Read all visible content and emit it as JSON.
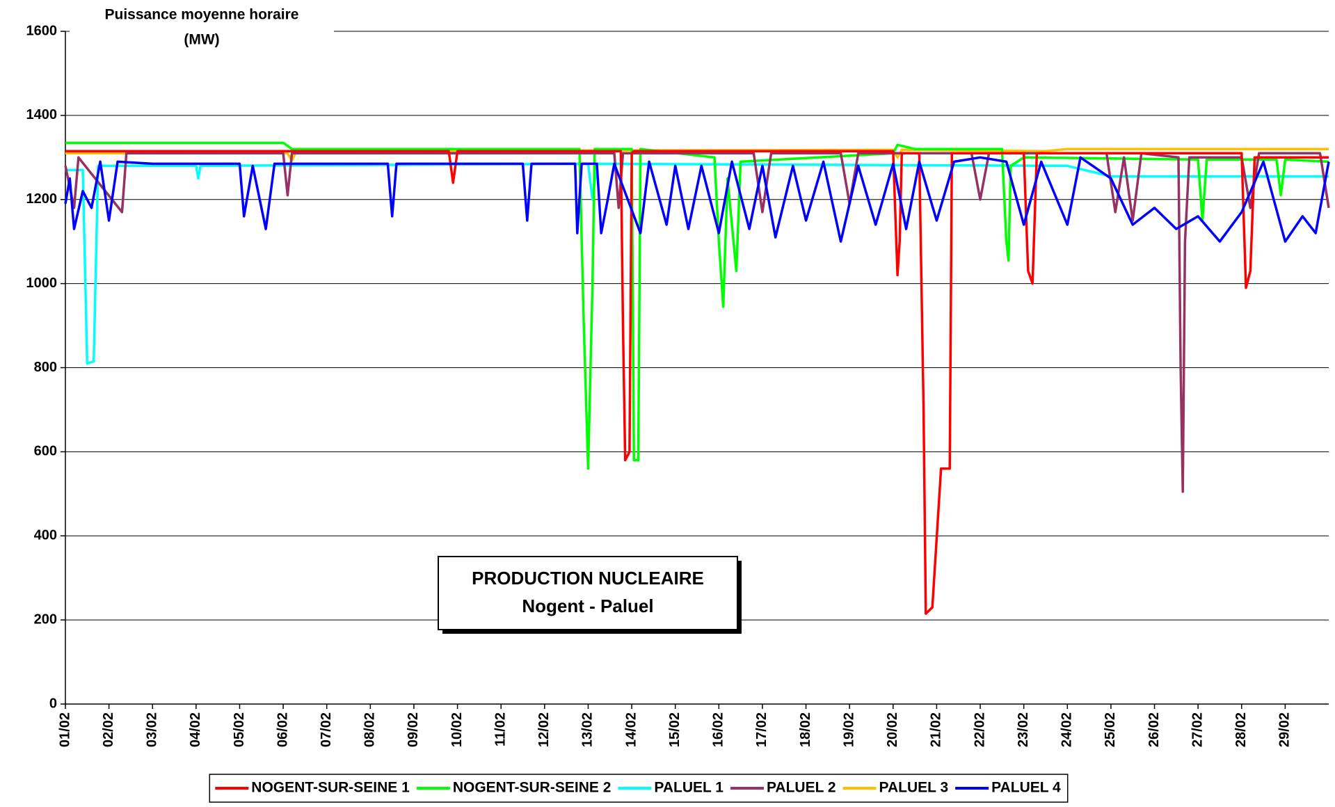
{
  "chart_data": {
    "type": "line",
    "title": "PRODUCTION NUCLEAIRE",
    "subtitle": "Nogent - Paluel",
    "y_label": [
      "Puissance moyenne horaire",
      "(MW)"
    ],
    "xlim": [
      0,
      29
    ],
    "xticks": [
      {
        "value": 0,
        "label": "01/02"
      },
      {
        "value": 1,
        "label": "02/02"
      },
      {
        "value": 2,
        "label": "03/02"
      },
      {
        "value": 3,
        "label": "04/02"
      },
      {
        "value": 4,
        "label": "05/02"
      },
      {
        "value": 5,
        "label": "06/02"
      },
      {
        "value": 6,
        "label": "07/02"
      },
      {
        "value": 7,
        "label": "08/02"
      },
      {
        "value": 8,
        "label": "09/02"
      },
      {
        "value": 9,
        "label": "10/02"
      },
      {
        "value": 10,
        "label": "11/02"
      },
      {
        "value": 11,
        "label": "12/02"
      },
      {
        "value": 12,
        "label": "13/02"
      },
      {
        "value": 13,
        "label": "14/02"
      },
      {
        "value": 14,
        "label": "15/02"
      },
      {
        "value": 15,
        "label": "16/02"
      },
      {
        "value": 16,
        "label": "17/02"
      },
      {
        "value": 17,
        "label": "18/02"
      },
      {
        "value": 18,
        "label": "19/02"
      },
      {
        "value": 19,
        "label": "20/02"
      },
      {
        "value": 20,
        "label": "21/02"
      },
      {
        "value": 21,
        "label": "22/02"
      },
      {
        "value": 22,
        "label": "23/02"
      },
      {
        "value": 23,
        "label": "24/02"
      },
      {
        "value": 24,
        "label": "25/02"
      },
      {
        "value": 25,
        "label": "26/02"
      },
      {
        "value": 26,
        "label": "27/02"
      },
      {
        "value": 27,
        "label": "28/02"
      },
      {
        "value": 28,
        "label": "29/02"
      }
    ],
    "ylim": [
      0,
      1600
    ],
    "yticks": [
      0,
      200,
      400,
      600,
      800,
      1000,
      1200,
      1400,
      1600
    ],
    "grid": true,
    "legend": "bottom",
    "series": [
      {
        "name": "PALUEL 3",
        "color": "#ffc000",
        "x": [
          0,
          5.1,
          5.2,
          5.3,
          19.0,
          19.1,
          19.2,
          22.5,
          23.0,
          29
        ],
        "values": [
          1310,
          1310,
          1292,
          1315,
          1318,
          1300,
          1318,
          1315,
          1320,
          1320
        ]
      },
      {
        "name": "PALUEL 1",
        "color": "#00ffff",
        "x": [
          0,
          0.4,
          0.5,
          0.65,
          0.75,
          3.0,
          3.05,
          3.1,
          12.0,
          12.1,
          12.2,
          23.0,
          24.0,
          29
        ],
        "values": [
          1270,
          1270,
          810,
          815,
          1280,
          1280,
          1250,
          1280,
          1285,
          1200,
          1285,
          1280,
          1255,
          1255
        ]
      },
      {
        "name": "NOGENT-SUR-SEINE 2",
        "color": "#00ff00",
        "x": [
          0,
          5.0,
          5.2,
          11.8,
          11.9,
          12.0,
          12.1,
          12.15,
          13.0,
          13.05,
          13.15,
          13.2,
          14.9,
          15.0,
          15.1,
          15.2,
          15.4,
          15.5,
          19.0,
          19.1,
          19.5,
          21.5,
          21.6,
          21.65,
          21.7,
          22.0,
          26.0,
          26.1,
          26.2,
          27.8,
          27.9,
          28.0,
          29
        ],
        "values": [
          1335,
          1335,
          1320,
          1320,
          900,
          560,
          1000,
          1320,
          1320,
          580,
          580,
          1320,
          1300,
          1100,
          945,
          1250,
          1030,
          1290,
          1310,
          1330,
          1320,
          1320,
          1100,
          1055,
          1280,
          1300,
          1295,
          1150,
          1295,
          1295,
          1210,
          1295,
          1290
        ]
      },
      {
        "name": "PALUEL 2",
        "color": "#953163",
        "x": [
          0,
          0.2,
          0.3,
          1.3,
          1.4,
          5.0,
          5.1,
          5.2,
          12.6,
          12.7,
          12.8,
          15.8,
          16.0,
          16.2,
          17.8,
          18.0,
          18.2,
          20.8,
          21.0,
          21.2,
          23.9,
          24.1,
          24.3,
          24.5,
          24.7,
          25.55,
          25.6,
          25.65,
          25.7,
          25.8,
          27.0,
          27.2,
          27.4,
          28.8,
          29
        ],
        "values": [
          1280,
          1180,
          1300,
          1170,
          1310,
          1310,
          1210,
          1310,
          1310,
          1180,
          1310,
          1310,
          1170,
          1310,
          1310,
          1190,
          1310,
          1310,
          1200,
          1310,
          1310,
          1170,
          1300,
          1150,
          1310,
          1300,
          800,
          505,
          1100,
          1300,
          1300,
          1180,
          1310,
          1310,
          1180
        ]
      },
      {
        "name": "NOGENT-SUR-SEINE 1",
        "color": "#ff0000",
        "x": [
          0,
          8.8,
          8.9,
          9.0,
          9.05,
          12.75,
          12.8,
          12.85,
          12.95,
          13.0,
          13.05,
          19.0,
          19.1,
          19.15,
          19.2,
          19.6,
          19.7,
          19.75,
          19.9,
          20.1,
          20.3,
          20.35,
          20.4,
          22.0,
          22.1,
          22.2,
          22.3,
          27.0,
          27.1,
          27.2,
          27.3,
          29
        ],
        "values": [
          1315,
          1315,
          1240,
          1315,
          1315,
          1315,
          900,
          580,
          600,
          1310,
          1315,
          1315,
          1020,
          1100,
          1310,
          1310,
          700,
          215,
          230,
          560,
          560,
          1310,
          1310,
          1310,
          1030,
          1000,
          1310,
          1310,
          990,
          1030,
          1300,
          1300
        ]
      },
      {
        "name": "PALUEL 4",
        "color": "#0000ff",
        "x": [
          0,
          0.1,
          0.2,
          0.4,
          0.6,
          0.8,
          1.0,
          1.2,
          2.0,
          4.0,
          4.1,
          4.3,
          4.6,
          4.8,
          7.4,
          7.5,
          7.6,
          10.5,
          10.6,
          10.7,
          11.7,
          11.75,
          11.85,
          12.2,
          12.3,
          12.45,
          12.6,
          13.2,
          13.4,
          13.8,
          14.0,
          14.3,
          14.6,
          15.0,
          15.3,
          15.7,
          16.0,
          16.3,
          16.7,
          17.0,
          17.4,
          17.8,
          18.2,
          18.6,
          19.0,
          19.3,
          19.6,
          20.0,
          20.4,
          21.0,
          21.6,
          22.0,
          22.4,
          22.6,
          23.0,
          23.3,
          24.0,
          24.5,
          25.0,
          25.5,
          26.0,
          26.5,
          27.0,
          27.5,
          28.0,
          28.4,
          28.7,
          29
        ],
        "values": [
          1190,
          1250,
          1130,
          1220,
          1180,
          1290,
          1150,
          1290,
          1285,
          1285,
          1160,
          1280,
          1130,
          1285,
          1285,
          1160,
          1285,
          1285,
          1150,
          1285,
          1285,
          1120,
          1285,
          1285,
          1120,
          1200,
          1285,
          1120,
          1290,
          1140,
          1280,
          1130,
          1280,
          1120,
          1290,
          1130,
          1280,
          1110,
          1280,
          1150,
          1290,
          1100,
          1280,
          1140,
          1285,
          1130,
          1290,
          1150,
          1290,
          1300,
          1290,
          1140,
          1290,
          1240,
          1140,
          1300,
          1250,
          1140,
          1180,
          1130,
          1160,
          1100,
          1170,
          1290,
          1100,
          1160,
          1120,
          1290
        ]
      }
    ]
  }
}
